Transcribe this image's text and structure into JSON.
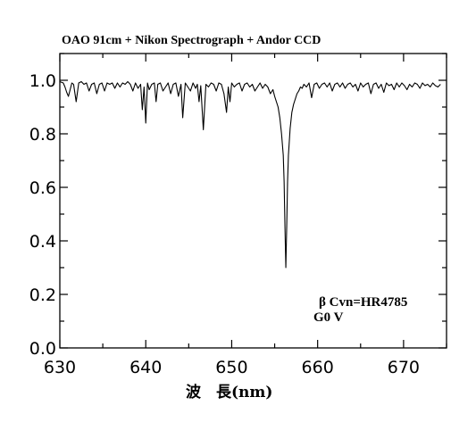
{
  "chart_data": {
    "type": "line",
    "title": "OAO 91cm + Nikon Spectrograph + Andor CCD",
    "xlabel": "波　長(nm)",
    "ylabel": "",
    "xlim": [
      630,
      675
    ],
    "ylim": [
      0.0,
      1.1
    ],
    "x_ticks": [
      630,
      640,
      650,
      660,
      670
    ],
    "x_tick_labels": [
      "630",
      "640",
      "650",
      "660",
      "670"
    ],
    "y_ticks": [
      0.0,
      0.2,
      0.4,
      0.6,
      0.8,
      1.0
    ],
    "y_tick_labels": [
      "0.0",
      "0.2",
      "0.4",
      "0.6",
      "0.8",
      "1.0"
    ],
    "grid": false,
    "annotations": [
      {
        "text": "β Cvn=HR4785"
      },
      {
        "text": "G0 V"
      }
    ],
    "series": [
      {
        "color": "#000000",
        "x": [
          630.0,
          630.4,
          630.6,
          630.8,
          631.0,
          631.2,
          631.4,
          631.6,
          631.9,
          632.2,
          632.5,
          632.8,
          633.1,
          633.4,
          633.7,
          634.0,
          634.3,
          634.6,
          634.9,
          635.2,
          635.5,
          635.8,
          636.1,
          636.4,
          636.7,
          637.0,
          637.3,
          637.6,
          637.9,
          638.2,
          638.5,
          638.8,
          639.1,
          639.4,
          639.6,
          639.8,
          640.0,
          640.2,
          640.4,
          640.7,
          641.0,
          641.2,
          641.4,
          641.7,
          642.0,
          642.3,
          642.6,
          642.9,
          643.2,
          643.5,
          643.8,
          644.1,
          644.3,
          644.6,
          644.9,
          645.2,
          645.5,
          645.8,
          646.0,
          646.2,
          646.4,
          646.7,
          647.0,
          647.3,
          647.6,
          647.9,
          648.2,
          648.5,
          648.8,
          649.1,
          649.4,
          649.6,
          649.8,
          650.0,
          650.3,
          650.6,
          650.9,
          651.2,
          651.5,
          651.8,
          652.1,
          652.4,
          652.7,
          653.0,
          653.3,
          653.6,
          653.9,
          654.2,
          654.5,
          654.8,
          655.0,
          655.2,
          655.4,
          655.6,
          655.8,
          656.0,
          656.1,
          656.2,
          656.3,
          656.4,
          656.5,
          656.6,
          656.8,
          657.0,
          657.2,
          657.4,
          657.6,
          657.8,
          658.0,
          658.2,
          658.4,
          658.7,
          659.0,
          659.3,
          659.6,
          659.9,
          660.2,
          660.5,
          660.8,
          661.1,
          661.4,
          661.7,
          662.0,
          662.3,
          662.6,
          662.9,
          663.2,
          663.5,
          663.8,
          664.1,
          664.4,
          664.7,
          665.0,
          665.3,
          665.6,
          665.9,
          666.2,
          666.5,
          666.8,
          667.1,
          667.4,
          667.7,
          668.0,
          668.3,
          668.6,
          668.9,
          669.2,
          669.5,
          669.8,
          670.1,
          670.4,
          670.7,
          671.0,
          671.3,
          671.6,
          671.9,
          672.2,
          672.5,
          672.8,
          673.1,
          673.4,
          673.7,
          674.0,
          674.3
        ],
        "y": [
          0.995,
          0.99,
          0.975,
          0.955,
          0.94,
          0.965,
          0.99,
          0.985,
          0.92,
          0.99,
          0.995,
          0.985,
          0.99,
          0.96,
          0.985,
          0.99,
          0.95,
          0.985,
          0.99,
          0.96,
          0.99,
          0.985,
          0.99,
          0.97,
          0.99,
          0.975,
          0.99,
          0.985,
          0.995,
          0.985,
          0.96,
          0.99,
          0.97,
          0.985,
          0.89,
          0.975,
          0.84,
          0.99,
          0.965,
          0.985,
          0.99,
          0.92,
          0.985,
          0.99,
          0.96,
          0.975,
          0.99,
          0.95,
          0.985,
          0.99,
          0.94,
          0.985,
          0.86,
          0.99,
          0.975,
          0.96,
          0.99,
          0.97,
          0.985,
          0.92,
          0.98,
          0.815,
          0.985,
          0.975,
          0.99,
          0.985,
          0.96,
          0.99,
          0.985,
          0.95,
          0.88,
          0.975,
          0.92,
          0.99,
          0.975,
          0.985,
          0.99,
          0.96,
          0.985,
          0.99,
          0.975,
          0.985,
          0.96,
          0.975,
          0.99,
          0.97,
          0.985,
          0.975,
          0.95,
          0.965,
          0.94,
          0.92,
          0.9,
          0.86,
          0.8,
          0.72,
          0.62,
          0.45,
          0.3,
          0.45,
          0.62,
          0.72,
          0.82,
          0.88,
          0.91,
          0.93,
          0.95,
          0.96,
          0.975,
          0.97,
          0.985,
          0.975,
          0.99,
          0.935,
          0.985,
          0.99,
          0.97,
          0.985,
          0.99,
          0.975,
          0.99,
          0.96,
          0.985,
          0.99,
          0.975,
          0.99,
          0.97,
          0.985,
          0.99,
          0.975,
          0.985,
          0.96,
          0.99,
          0.975,
          0.985,
          0.99,
          0.95,
          0.985,
          0.99,
          0.97,
          0.985,
          0.955,
          0.99,
          0.98,
          0.985,
          0.965,
          0.99,
          0.975,
          0.99,
          0.98,
          0.965,
          0.985,
          0.975,
          0.99,
          0.985,
          0.97,
          0.99,
          0.98,
          0.985,
          0.975,
          0.99,
          0.98,
          0.975,
          0.985
        ]
      }
    ]
  }
}
